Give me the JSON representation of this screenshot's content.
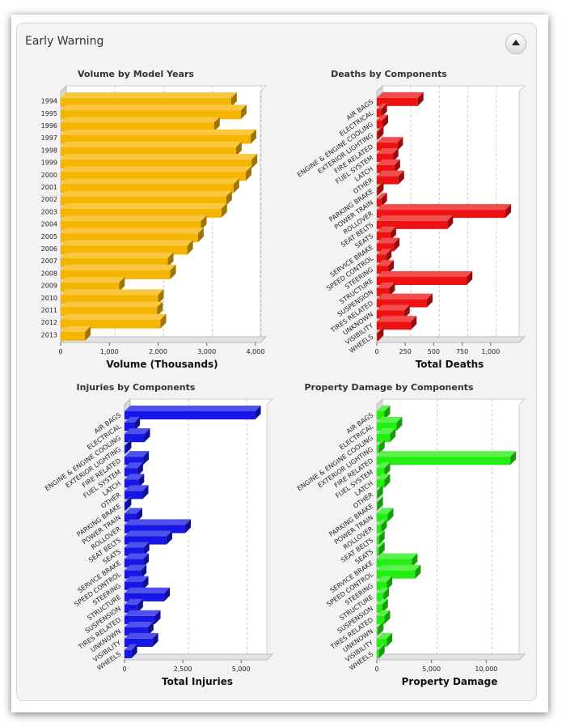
{
  "panel": {
    "title": "Early Warning",
    "collapse_icon": "chevron-up-icon"
  },
  "chart_data": [
    {
      "type": "bar",
      "orientation": "horizontal",
      "title": "Volume by Model Years",
      "xlabel": "Volume (Thousands)",
      "ylabel": "",
      "xlim": [
        0,
        4100
      ],
      "xticks": [
        "0",
        "1,000",
        "2,000",
        "3,000",
        "4,000"
      ],
      "xtick_values": [
        0,
        1000,
        2000,
        3000,
        4000
      ],
      "categories": [
        "1994",
        "1995",
        "1996",
        "1997",
        "1998",
        "1999",
        "2000",
        "2001",
        "2002",
        "2003",
        "2004",
        "2005",
        "2006",
        "2007",
        "2008",
        "2009",
        "2010",
        "2011",
        "2012",
        "2013"
      ],
      "values": [
        3500,
        3700,
        3150,
        3900,
        3600,
        3920,
        3800,
        3550,
        3400,
        3300,
        2880,
        2820,
        2600,
        2200,
        2250,
        1200,
        2000,
        1980,
        2050,
        500
      ],
      "color": "#f4b400",
      "grid": true
    },
    {
      "type": "bar",
      "orientation": "horizontal",
      "title": "Deaths by Components",
      "xlabel": "Total Deaths",
      "ylabel": "",
      "xlim": [
        0,
        1250
      ],
      "xticks": [
        "0",
        "250",
        "500",
        "750",
        "1,000"
      ],
      "xtick_values": [
        0,
        250,
        500,
        750,
        1000
      ],
      "categories": [
        "AIR BAGS",
        "ELECTRICAL",
        "ENGINE & ENGINE COOLING",
        "EXTERIOR LIGHTING",
        "FIRE RELATED",
        "FUEL SYSTEM",
        "LATCH",
        "OTHER",
        "PARKING BRAKE",
        "POWER TRAIN",
        "ROLLOVER",
        "SEAT BELTS",
        "SEATS",
        "SERVICE BRAKE",
        "SPEED CONTROL",
        "STEERING",
        "STRUCTURE",
        "SUSPENSION",
        "TIRES RELATED",
        "UNKNOWN",
        "VISIBILITY",
        "WHEELS"
      ],
      "values": [
        360,
        40,
        50,
        10,
        180,
        140,
        155,
        190,
        10,
        40,
        1130,
        620,
        120,
        150,
        80,
        100,
        790,
        110,
        440,
        240,
        300,
        10
      ],
      "color": "#ee1111",
      "grid": true
    },
    {
      "type": "bar",
      "orientation": "horizontal",
      "title": "Injuries by Components",
      "xlabel": "Total Injuries",
      "ylabel": "",
      "xlim": [
        0,
        6100
      ],
      "xticks": [
        "0",
        "2,500",
        "5,000"
      ],
      "xtick_values": [
        0,
        2500,
        5000
      ],
      "categories": [
        "AIR BAGS",
        "ELECTRICAL",
        "ENGINE & ENGINE COOLING",
        "EXTERIOR LIGHTING",
        "FIRE RELATED",
        "FUEL SYSTEM",
        "LATCH",
        "OTHER",
        "PARKING BRAKE",
        "POWER TRAIN",
        "ROLLOVER",
        "SEAT BELTS",
        "SEATS",
        "SERVICE BRAKE",
        "SPEED CONTROL",
        "STEERING",
        "STRUCTURE",
        "SUSPENSION",
        "TIRES RELATED",
        "UNKNOWN",
        "VISIBILITY",
        "WHEELS"
      ],
      "values": [
        5600,
        420,
        850,
        50,
        800,
        550,
        600,
        780,
        50,
        520,
        2600,
        1800,
        820,
        800,
        700,
        780,
        1700,
        550,
        1300,
        1000,
        1200,
        300
      ],
      "color": "#1616e6",
      "grid": true
    },
    {
      "type": "bar",
      "orientation": "horizontal",
      "title": "Property Damage by Components",
      "xlabel": "Property Damage",
      "ylabel": "",
      "xlim": [
        0,
        13000
      ],
      "xticks": [
        "0",
        "5,000",
        "10,000"
      ],
      "xtick_values": [
        0,
        5000,
        10000
      ],
      "categories": [
        "AIR BAGS",
        "ELECTRICAL",
        "ENGINE & ENGINE COOLING",
        "EXTERIOR LIGHTING",
        "FIRE RELATED",
        "FUEL SYSTEM",
        "LATCH",
        "OTHER",
        "PARKING BRAKE",
        "POWER TRAIN",
        "ROLLOVER",
        "SEAT BELTS",
        "SEATS",
        "SERVICE BRAKE",
        "SPEED CONTROL",
        "STEERING",
        "STRUCTURE",
        "SUSPENSION",
        "TIRES RELATED",
        "UNKNOWN",
        "VISIBILITY",
        "WHEELS"
      ],
      "values": [
        700,
        1800,
        1200,
        200,
        12200,
        700,
        700,
        50,
        50,
        1000,
        400,
        200,
        200,
        3200,
        3500,
        900,
        600,
        500,
        700,
        100,
        900,
        200
      ],
      "color": "#22ee11",
      "grid": true
    }
  ]
}
